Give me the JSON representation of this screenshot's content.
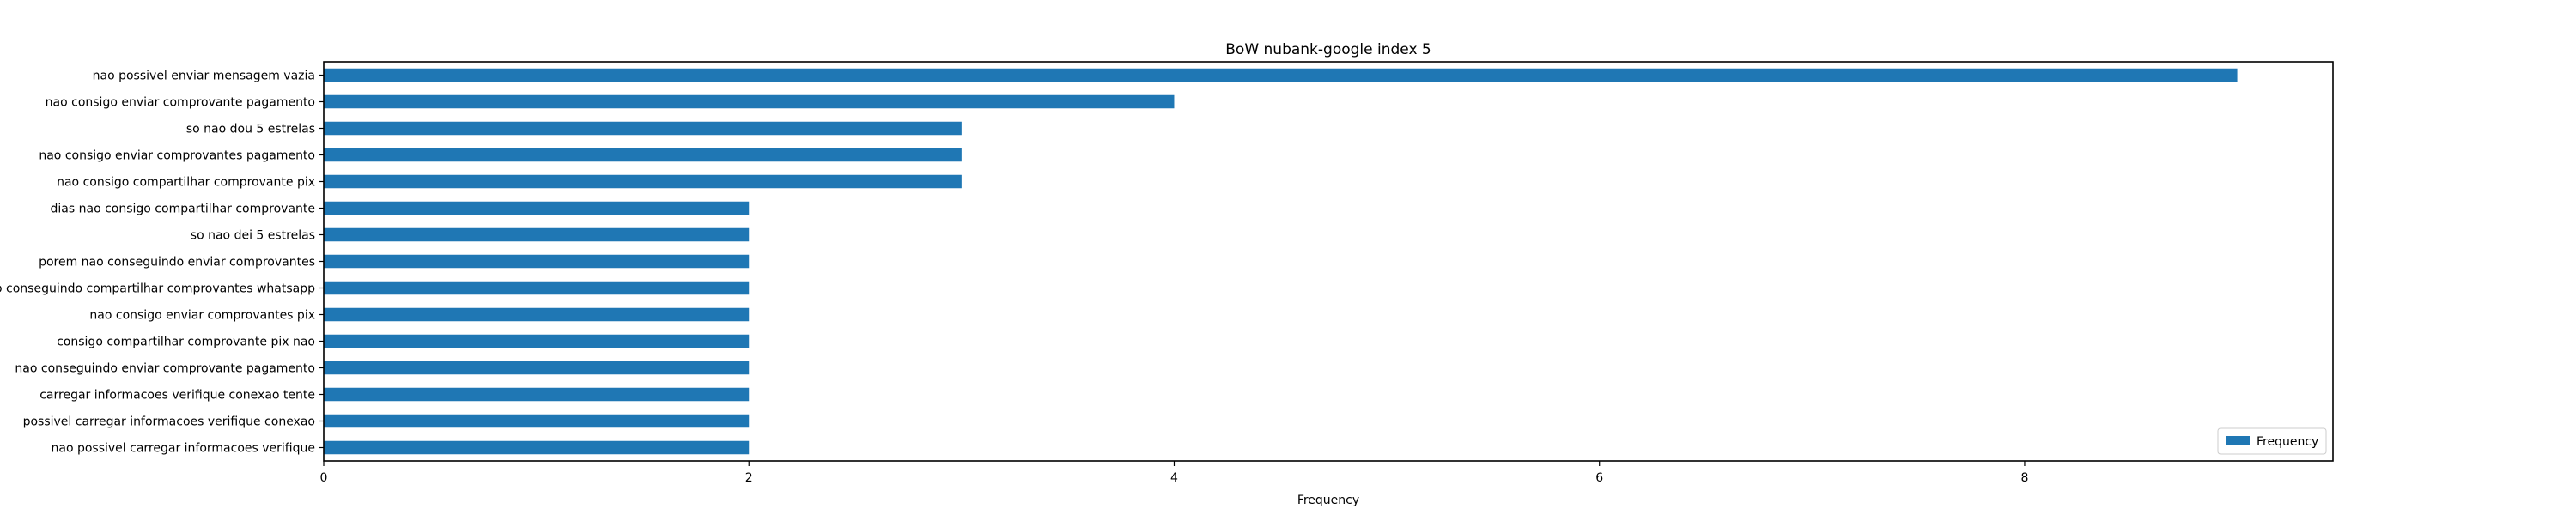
{
  "chart_data": {
    "type": "bar",
    "orientation": "horizontal",
    "title": "BoW nubank-google index 5",
    "xlabel": "Frequency",
    "ylabel": "",
    "xlim": [
      0,
      9.45
    ],
    "xticks": [
      0,
      2,
      4,
      6,
      8
    ],
    "grid": false,
    "legend_position": "lower-right",
    "categories": [
      "nao possivel enviar mensagem vazia",
      "nao consigo enviar comprovante pagamento",
      "so nao dou 5 estrelas",
      "nao consigo enviar comprovantes pagamento",
      "nao consigo compartilhar comprovante pix",
      "dias nao consigo compartilhar comprovante",
      "so nao dei 5 estrelas",
      "porem nao conseguindo enviar comprovantes",
      "nao conseguindo compartilhar comprovantes whatsapp",
      "nao consigo enviar comprovantes pix",
      "consigo compartilhar comprovante pix nao",
      "nao conseguindo enviar comprovante pagamento",
      "carregar informacoes verifique conexao tente",
      "possivel carregar informacoes verifique conexao",
      "nao possivel carregar informacoes verifique"
    ],
    "series": [
      {
        "name": "Frequency",
        "color": "#1f77b4",
        "values": [
          9,
          4,
          3,
          3,
          3,
          2,
          2,
          2,
          2,
          2,
          2,
          2,
          2,
          2,
          2
        ]
      }
    ]
  }
}
